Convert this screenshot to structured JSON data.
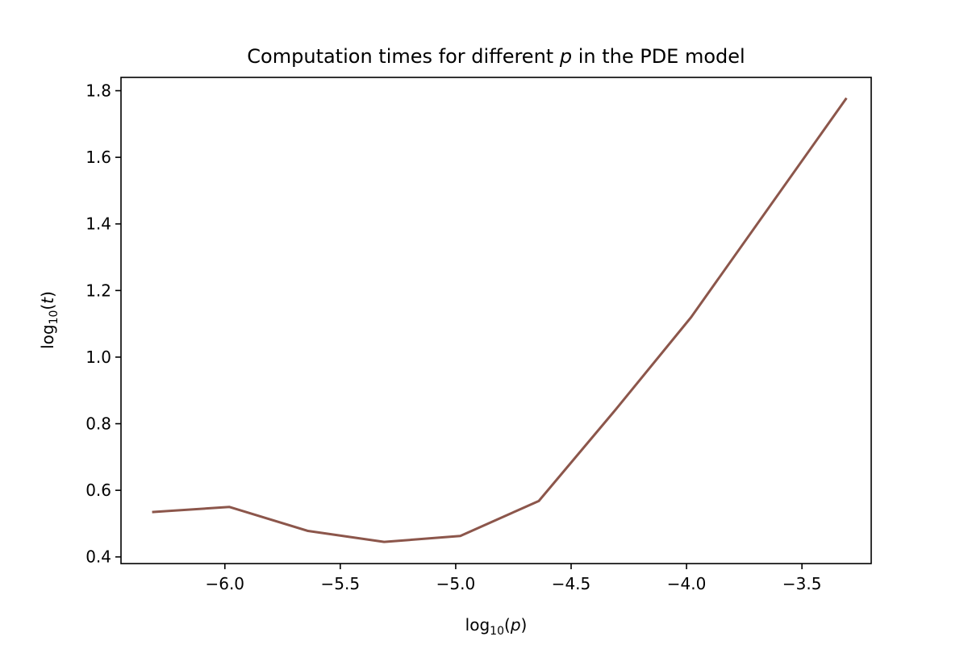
{
  "chart_data": {
    "type": "line",
    "title": {
      "prefix": "Computation times for different ",
      "var": "p",
      "suffix": " in the PDE model"
    },
    "xlabel": {
      "base": "log",
      "sub": "10",
      "open": "(",
      "var": "p",
      "close": ")"
    },
    "ylabel": {
      "base": "log",
      "sub": "10",
      "open": "(",
      "var": "t",
      "close": ")"
    },
    "xlim": [
      -6.45,
      -3.2
    ],
    "ylim": [
      0.38,
      1.84
    ],
    "xticks": [
      -6.0,
      -5.5,
      -5.0,
      -4.5,
      -4.0,
      -3.5
    ],
    "xtick_labels": [
      "−6.0",
      "−5.5",
      "−5.0",
      "−4.5",
      "−4.0",
      "−3.5"
    ],
    "yticks": [
      0.4,
      0.6,
      0.8,
      1.0,
      1.2,
      1.4,
      1.6,
      1.8
    ],
    "ytick_labels": [
      "0.4",
      "0.6",
      "0.8",
      "1.0",
      "1.2",
      "1.4",
      "1.6",
      "1.8"
    ],
    "grid": false,
    "series": [
      {
        "color": "#8c564b",
        "x": [
          -6.31,
          -5.98,
          -5.64,
          -5.31,
          -4.98,
          -4.64,
          -4.31,
          -3.98,
          -3.31
        ],
        "y": [
          0.535,
          0.55,
          0.478,
          0.445,
          0.463,
          0.568,
          0.84,
          1.12,
          1.775
        ]
      }
    ]
  }
}
